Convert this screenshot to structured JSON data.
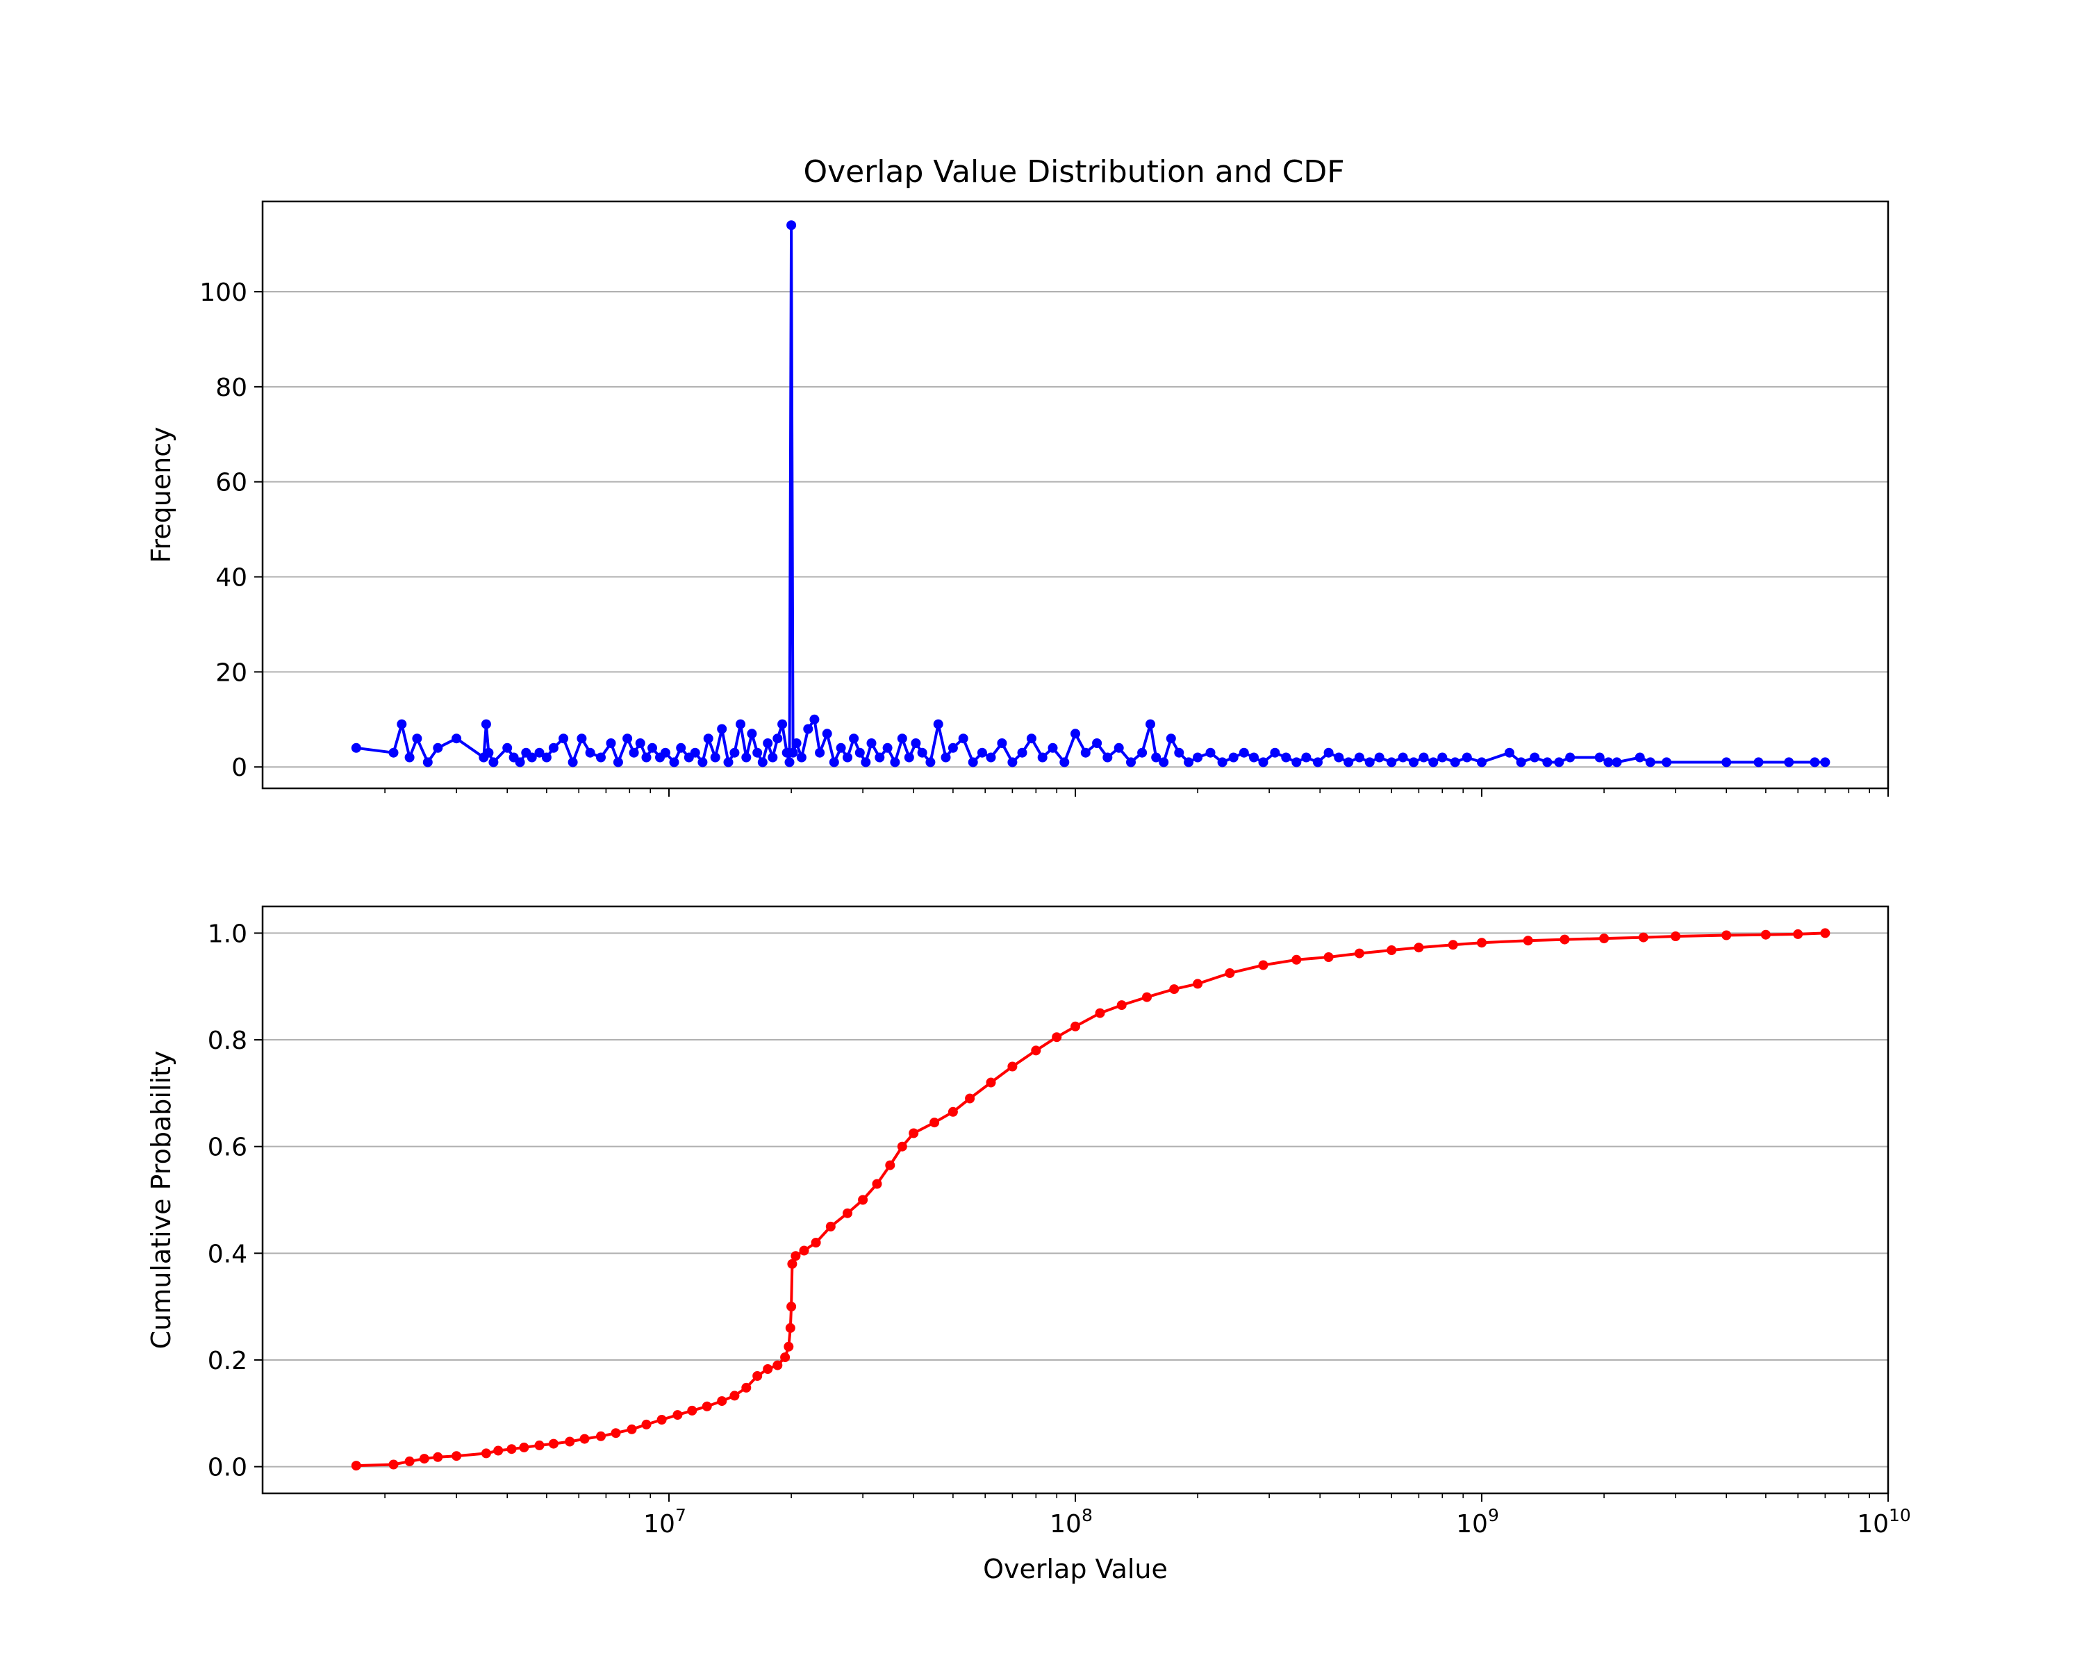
{
  "figure": {
    "title": "Overlap Value Distribution and CDF"
  },
  "chart_data": [
    {
      "type": "line",
      "ylabel": "Frequency",
      "xlabel": "",
      "xscale": "log",
      "xlim": [
        1000000,
        10000000000
      ],
      "ylim": [
        -4.5,
        119
      ],
      "grid": "y",
      "y_ticks": [
        "0",
        "20",
        "40",
        "60",
        "80",
        "100"
      ],
      "series": [
        {
          "color": "#0000ff",
          "marker": "circle",
          "x": [
            1700000,
            2100000,
            2200000,
            2300000,
            2400000,
            2550000,
            2700000,
            3000000,
            3500000,
            3550000,
            3600000,
            3700000,
            4000000,
            4150000,
            4300000,
            4450000,
            4600000,
            4800000,
            5000000,
            5200000,
            5500000,
            5800000,
            6100000,
            6400000,
            6800000,
            7200000,
            7500000,
            7900000,
            8200000,
            8500000,
            8800000,
            9100000,
            9500000,
            9800000,
            10300000,
            10700000,
            11200000,
            11600000,
            12100000,
            12500000,
            13000000,
            13500000,
            14000000,
            14500000,
            15000000,
            15500000,
            16000000,
            16500000,
            17000000,
            17500000,
            18000000,
            18500000,
            19000000,
            19500000,
            19800000,
            20000000,
            20200000,
            20600000,
            21200000,
            22000000,
            22800000,
            23500000,
            24500000,
            25500000,
            26500000,
            27500000,
            28500000,
            29500000,
            30500000,
            31500000,
            33000000,
            34500000,
            36000000,
            37500000,
            39000000,
            40500000,
            42000000,
            44000000,
            46000000,
            48000000,
            50000000,
            53000000,
            56000000,
            59000000,
            62000000,
            66000000,
            70000000,
            74000000,
            78000000,
            83000000,
            88000000,
            94000000,
            100000000,
            106000000,
            113000000,
            120000000,
            128000000,
            137000000,
            146000000,
            153000000,
            158000000,
            165000000,
            172000000,
            180000000,
            190000000,
            200000000,
            215000000,
            230000000,
            245000000,
            260000000,
            275000000,
            290000000,
            310000000,
            330000000,
            350000000,
            370000000,
            395000000,
            420000000,
            445000000,
            470000000,
            500000000,
            530000000,
            560000000,
            600000000,
            640000000,
            680000000,
            720000000,
            760000000,
            800000000,
            860000000,
            920000000,
            1000000000,
            1170000000,
            1250000000,
            1350000000,
            1450000000,
            1550000000,
            1650000000,
            1950000000,
            2050000000,
            2150000000,
            2450000000,
            2600000000,
            2850000000,
            4000000000,
            4800000000,
            5700000000,
            6600000000,
            7000000000
          ],
          "y": [
            4,
            3,
            9,
            2,
            6,
            1,
            4,
            6,
            2,
            9,
            3,
            1,
            4,
            2,
            1,
            3,
            2,
            3,
            2,
            4,
            6,
            1,
            6,
            3,
            2,
            5,
            1,
            6,
            3,
            5,
            2,
            4,
            2,
            3,
            1,
            4,
            2,
            3,
            1,
            6,
            2,
            8,
            1,
            3,
            9,
            2,
            7,
            3,
            1,
            5,
            2,
            6,
            9,
            3,
            1,
            114,
            3,
            5,
            2,
            8,
            10,
            3,
            7,
            1,
            4,
            2,
            6,
            3,
            1,
            5,
            2,
            4,
            1,
            6,
            2,
            5,
            3,
            1,
            9,
            2,
            4,
            6,
            1,
            3,
            2,
            5,
            1,
            3,
            6,
            2,
            4,
            1,
            7,
            3,
            5,
            2,
            4,
            1,
            3,
            9,
            2,
            1,
            6,
            3,
            1,
            2,
            3,
            1,
            2,
            3,
            2,
            1,
            3,
            2,
            1,
            2,
            1,
            3,
            2,
            1,
            2,
            1,
            2,
            1,
            2,
            1,
            2,
            1,
            2,
            1,
            2,
            1,
            3,
            1,
            2,
            1,
            1,
            2,
            2,
            1,
            1,
            2,
            1,
            1,
            1,
            1,
            1,
            1,
            1
          ]
        }
      ]
    },
    {
      "type": "line",
      "ylabel": "Cumulative Probability",
      "xlabel": "Overlap Value",
      "xscale": "log",
      "xlim": [
        1000000,
        10000000000
      ],
      "ylim": [
        -0.05,
        1.05
      ],
      "grid": "y",
      "x_ticks": [
        {
          "base": "10",
          "exp": "7"
        },
        {
          "base": "10",
          "exp": "8"
        },
        {
          "base": "10",
          "exp": "9"
        },
        {
          "base": "10",
          "exp": "10"
        }
      ],
      "y_ticks": [
        "0.0",
        "0.2",
        "0.4",
        "0.6",
        "0.8",
        "1.0"
      ],
      "series": [
        {
          "color": "#ff0000",
          "marker": "circle",
          "x": [
            1700000,
            2100000,
            2300000,
            2500000,
            2700000,
            3000000,
            3550000,
            3800000,
            4100000,
            4400000,
            4800000,
            5200000,
            5700000,
            6200000,
            6800000,
            7400000,
            8100000,
            8800000,
            9600000,
            10500000,
            11400000,
            12400000,
            13500000,
            14500000,
            15500000,
            16500000,
            17500000,
            18500000,
            19300000,
            19700000,
            19900000,
            20000000,
            20100000,
            20500000,
            21500000,
            23000000,
            25000000,
            27500000,
            30000000,
            32500000,
            35000000,
            37500000,
            40000000,
            45000000,
            50000000,
            55000000,
            62000000,
            70000000,
            80000000,
            90000000,
            100000000,
            115000000,
            130000000,
            150000000,
            175000000,
            200000000,
            240000000,
            290000000,
            350000000,
            420000000,
            500000000,
            600000000,
            700000000,
            850000000,
            1000000000,
            1300000000,
            1600000000,
            2000000000,
            2500000000,
            3000000000,
            4000000000,
            5000000000,
            6000000000,
            7000000000
          ],
          "y": [
            0.002,
            0.004,
            0.01,
            0.015,
            0.018,
            0.02,
            0.025,
            0.03,
            0.033,
            0.036,
            0.04,
            0.043,
            0.047,
            0.052,
            0.057,
            0.063,
            0.07,
            0.079,
            0.088,
            0.097,
            0.105,
            0.113,
            0.123,
            0.133,
            0.148,
            0.17,
            0.183,
            0.19,
            0.205,
            0.225,
            0.26,
            0.3,
            0.38,
            0.395,
            0.405,
            0.42,
            0.45,
            0.475,
            0.5,
            0.53,
            0.565,
            0.6,
            0.625,
            0.645,
            0.665,
            0.69,
            0.72,
            0.75,
            0.78,
            0.805,
            0.825,
            0.85,
            0.865,
            0.88,
            0.895,
            0.905,
            0.925,
            0.94,
            0.95,
            0.955,
            0.962,
            0.968,
            0.973,
            0.978,
            0.982,
            0.986,
            0.988,
            0.99,
            0.992,
            0.994,
            0.996,
            0.997,
            0.998,
            1.0
          ]
        }
      ]
    }
  ]
}
